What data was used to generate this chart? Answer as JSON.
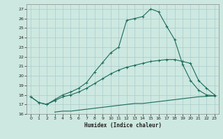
{
  "xlabel": "Humidex (Indice chaleur)",
  "ylabel": "",
  "bg_color": "#cde8e0",
  "line_color": "#1a6b5a",
  "grid_color": "#aacccc",
  "xlim": [
    -0.5,
    23.5
  ],
  "ylim": [
    16.0,
    27.5
  ],
  "xticks": [
    0,
    1,
    2,
    3,
    4,
    5,
    6,
    7,
    8,
    9,
    10,
    11,
    12,
    13,
    14,
    15,
    16,
    17,
    18,
    19,
    20,
    21,
    22,
    23
  ],
  "yticks": [
    16,
    17,
    18,
    19,
    20,
    21,
    22,
    23,
    24,
    25,
    26,
    27
  ],
  "line1_x": [
    0,
    1,
    2,
    3,
    4,
    5,
    6,
    7,
    8,
    9,
    10,
    11,
    12,
    13,
    14,
    15,
    16,
    17,
    18,
    19,
    20,
    21,
    22,
    23
  ],
  "line1_y": [
    17.8,
    17.2,
    17.0,
    17.5,
    18.0,
    18.3,
    18.7,
    19.3,
    20.4,
    21.4,
    22.4,
    23.0,
    25.8,
    26.0,
    26.2,
    27.0,
    26.7,
    25.2,
    23.8,
    21.2,
    19.5,
    18.5,
    18.0,
    17.9
  ],
  "line2_x": [
    0,
    1,
    2,
    3,
    4,
    5,
    6,
    7,
    8,
    9,
    10,
    11,
    12,
    13,
    14,
    15,
    16,
    17,
    18,
    19,
    20,
    21,
    22,
    23
  ],
  "line2_y": [
    17.8,
    17.2,
    17.0,
    17.4,
    17.8,
    18.0,
    18.3,
    18.7,
    19.2,
    19.7,
    20.2,
    20.6,
    20.9,
    21.1,
    21.3,
    21.5,
    21.6,
    21.7,
    21.7,
    21.5,
    21.3,
    19.5,
    18.7,
    18.0
  ],
  "line3_x": [
    3,
    4,
    5,
    6,
    7,
    8,
    9,
    10,
    11,
    12,
    13,
    14,
    15,
    16,
    17,
    18,
    19,
    20,
    21,
    22,
    23
  ],
  "line3_y": [
    16.2,
    16.3,
    16.3,
    16.4,
    16.5,
    16.6,
    16.7,
    16.8,
    16.9,
    17.0,
    17.1,
    17.1,
    17.2,
    17.3,
    17.4,
    17.5,
    17.6,
    17.7,
    17.8,
    17.85,
    17.9
  ]
}
